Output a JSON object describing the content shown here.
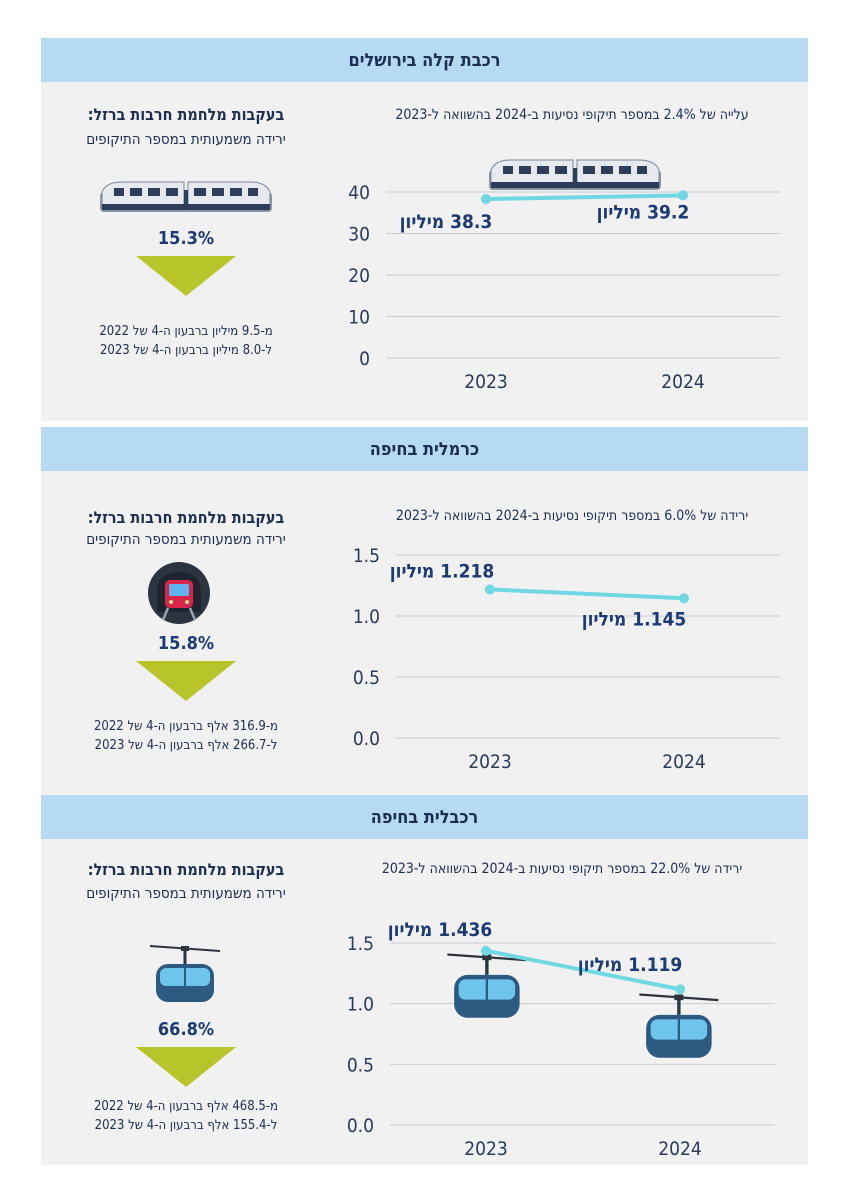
{
  "colors": {
    "band": "#b7daf3",
    "panel": "#f1f1f1",
    "line": "#6fd8e2",
    "arrow": "#b7c52a",
    "text": "#1c2e52",
    "grid": "#c5cdd6"
  },
  "sections": [
    {
      "title": "רכבת קלה בירושלים",
      "note_title": "בעקבות מלחמת חרבות ברזל:",
      "note_sub": "ירידה משמעותית במספר התיקופים",
      "pct": "15.3%",
      "from": "מ-9.5 מיליון ברבעון ה-4 של 2022",
      "to": "ל-8.0 מיליון ברבעון ה-4 של 2023",
      "icon": "light-rail-train-icon",
      "chart_subtitle": "עלייה של 2.4% במספר תיקופי נסיעות ב-2024 בהשוואה ל-2023"
    },
    {
      "title": "כרמלית בחיפה",
      "note_title": "בעקבות מלחמת חרבות ברזל:",
      "note_sub": "ירידה משמעותית במספר התיקופים",
      "pct": "15.8%",
      "from": "מ-316.9 אלף ברבעון ה-4 של 2022",
      "to": "ל-266.7 אלף ברבעון ה-4 של 2023",
      "icon": "subway-tunnel-icon",
      "chart_subtitle": "ירידה של 6.0% במספר תיקופי נסיעות ב-2024 בהשוואה ל-2023"
    },
    {
      "title": "רכבלית בחיפה",
      "note_title": "בעקבות מלחמת חרבות ברזל:",
      "note_sub": "ירידה משמעותית במספר התיקופים",
      "pct": "66.8%",
      "from": "מ-468.5 אלף ברבעון ה-4 של 2022",
      "to": "ל-155.4 אלף ברבעון ה-4 של 2023",
      "icon": "cable-car-icon",
      "chart_subtitle": "ירידה של 22.0% במספר תיקופי נסיעות ב-2024 בהשוואה ל-2023"
    }
  ],
  "chart_data": [
    {
      "type": "line",
      "x": [
        "2023",
        "2024"
      ],
      "series": [
        {
          "values": [
            38.3,
            39.2
          ]
        }
      ],
      "data_labels": [
        "38.3 מיליון",
        "39.2 מיליון"
      ],
      "yticks": [
        "0",
        "10",
        "20",
        "30",
        "40"
      ],
      "ylim": [
        0,
        40
      ],
      "grid": true
    },
    {
      "type": "line",
      "x": [
        "2023",
        "2024"
      ],
      "series": [
        {
          "values": [
            1.218,
            1.145
          ]
        }
      ],
      "data_labels": [
        "1.218 מיליון",
        "1.145 מיליון"
      ],
      "yticks": [
        "0.0",
        "0.5",
        "1.0",
        "1.5"
      ],
      "ylim": [
        0,
        1.5
      ],
      "grid": true
    },
    {
      "type": "line",
      "x": [
        "2023",
        "2024"
      ],
      "series": [
        {
          "values": [
            1.436,
            1.119
          ]
        }
      ],
      "data_labels": [
        "1.436 מיליון",
        "1.119 מיליון"
      ],
      "yticks": [
        "0.0",
        "0.5",
        "1.0",
        "1.5"
      ],
      "ylim": [
        0,
        1.5
      ],
      "grid": true
    }
  ]
}
